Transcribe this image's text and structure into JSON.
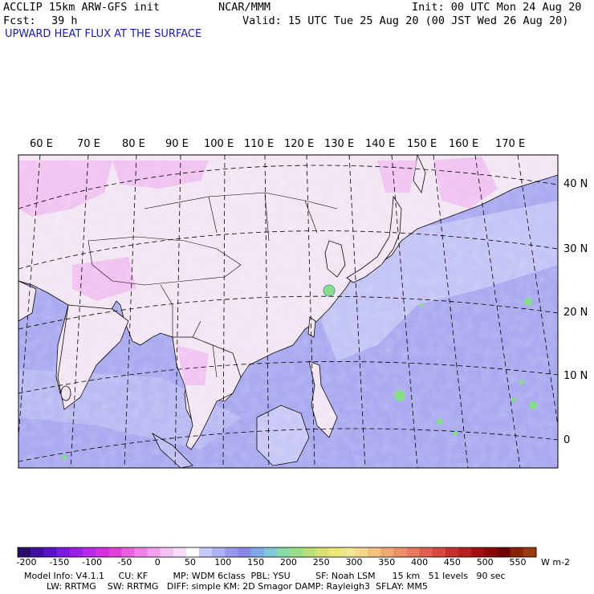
{
  "header": {
    "model": "ACCLIP 15km ARW-GFS init",
    "org": "NCAR/MMM",
    "init": "Init: 00 UTC Mon 24 Aug 20",
    "fcst_label": "Fcst:",
    "fcst_value": "39 h",
    "valid": "Valid: 15 UTC Tue 25 Aug 20 (00 JST Wed 26 Aug 20)",
    "field": "UPWARD HEAT FLUX AT THE SURFACE"
  },
  "map": {
    "lon_labels": [
      "60 E",
      "70 E",
      "80 E",
      "90 E",
      "100 E",
      "110 E",
      "120 E",
      "130 E",
      "140 E",
      "150 E",
      "160 E",
      "170 E"
    ],
    "lat_labels": [
      "40 N",
      "30 N",
      "20 N",
      "10 N",
      "0"
    ],
    "colors": {
      "land_base": "#f3e6f3",
      "land_pink": "#f0b8f0",
      "ocean_base": "#aaaaf0",
      "ocean_light": "#d2d2fa",
      "green_cell": "#88dd88",
      "coast": "#000000"
    }
  },
  "colorbar": {
    "ticks": [
      "-200",
      "-150",
      "-100",
      "-50",
      "0",
      "50",
      "100",
      "150",
      "200",
      "250",
      "300",
      "350",
      "400",
      "450",
      "500",
      "550"
    ],
    "unit": "W m-2",
    "colors": [
      "#2a0a6a",
      "#4010a0",
      "#5a14c8",
      "#7a1ae0",
      "#9a20e8",
      "#b828e8",
      "#d030e0",
      "#e040d8",
      "#e860e0",
      "#f080e8",
      "#f4a0f0",
      "#f6c0f4",
      "#f8dcf8",
      "#ffffff",
      "#c8c8f8",
      "#b0b0f4",
      "#9898ee",
      "#8888e8",
      "#80a8e8",
      "#80c8d8",
      "#88dca8",
      "#98e088",
      "#b8e078",
      "#d8e070",
      "#ece878",
      "#f0e890",
      "#f4d890",
      "#f4c080",
      "#f0a870",
      "#ec9068",
      "#e87860",
      "#e06050",
      "#d84840",
      "#c83030",
      "#b82020",
      "#a01010",
      "#880808",
      "#700000",
      "#882200",
      "#9a3a10"
    ]
  },
  "footer": {
    "line1": "Model Info: V4.1.1     CU: KF         MP: WDM 6class  PBL: YSU         SF: Noah LSM      15 km   51 levels   90 sec",
    "line2": "        LW: RRTMG    SW: RRTMG   DIFF: simple KM: 2D Smagor DAMP: Rayleigh3  SFLAY: MM5"
  }
}
